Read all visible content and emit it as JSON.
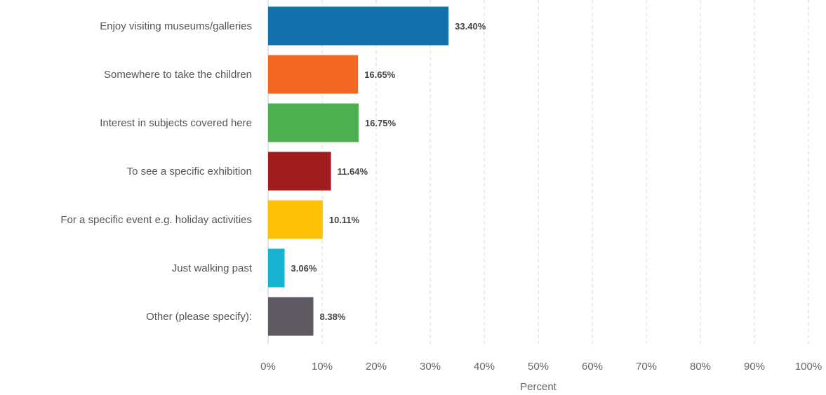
{
  "chart_data": {
    "type": "bar",
    "orientation": "horizontal",
    "categories": [
      "Enjoy visiting museums/galleries",
      "Somewhere to take the children",
      "Interest in subjects covered here",
      "To see a specific exhibition",
      "For a specific event e.g. holiday activities",
      "Just walking past",
      "Other (please specify):"
    ],
    "values": [
      33.4,
      16.65,
      16.75,
      11.64,
      10.11,
      3.06,
      8.38
    ],
    "value_labels": [
      "33.40%",
      "16.65%",
      "16.75%",
      "11.64%",
      "10.11%",
      "3.06%",
      "8.38%"
    ],
    "colors": [
      "#1470aa",
      "#f26722",
      "#4caf50",
      "#a11c1f",
      "#ffc107",
      "#17b3d1",
      "#5f5a62"
    ],
    "xlim": [
      0,
      100
    ],
    "x_ticks": [
      0,
      10,
      20,
      30,
      40,
      50,
      60,
      70,
      80,
      90,
      100
    ],
    "x_tick_labels": [
      "0%",
      "10%",
      "20%",
      "30%",
      "40%",
      "50%",
      "60%",
      "70%",
      "80%",
      "90%",
      "100%"
    ],
    "xlabel": "Percent",
    "ylabel": "",
    "title": "",
    "grid": "vertical-dashed",
    "legend": "none"
  }
}
